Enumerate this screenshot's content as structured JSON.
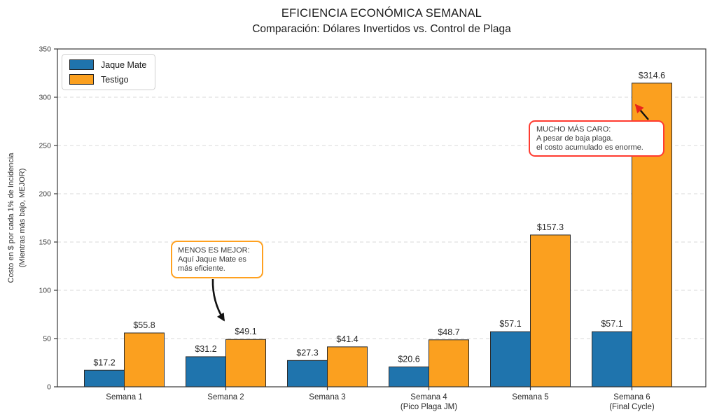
{
  "chart_data": {
    "type": "bar",
    "title": "EFICIENCIA ECONÓMICA SEMANAL",
    "subtitle": "Comparación: Dólares Invertidos vs. Control de Plaga",
    "ylabel_lines": [
      "Costo en $ por cada 1% de Incidencia",
      "(Mientras más bajo, MEJOR)"
    ],
    "ylim": [
      0,
      350
    ],
    "yticks": [
      0,
      50,
      100,
      150,
      200,
      250,
      300,
      350
    ],
    "grid": "horizontal dashed",
    "legend_position": "upper left",
    "value_label_prefix": "$",
    "categories": [
      {
        "label": "Semana 1",
        "sublabel": ""
      },
      {
        "label": "Semana 2",
        "sublabel": ""
      },
      {
        "label": "Semana 3",
        "sublabel": ""
      },
      {
        "label": "Semana 4",
        "sublabel": "(Pico Plaga JM)"
      },
      {
        "label": "Semana 5",
        "sublabel": ""
      },
      {
        "label": "Semana 6",
        "sublabel": "(Final Cycle)"
      }
    ],
    "series": [
      {
        "name": "Jaque Mate",
        "color": "#1f74ad",
        "values": [
          17.2,
          31.2,
          27.3,
          20.6,
          57.1,
          57.1
        ]
      },
      {
        "name": "Testigo",
        "color": "#fba01f",
        "values": [
          55.8,
          49.1,
          41.4,
          48.7,
          157.3,
          314.6
        ]
      }
    ],
    "annotations": [
      {
        "lines": [
          "MENOS ES MEJOR:",
          "Aquí Jaque Mate es",
          "más eficiente."
        ],
        "border_color": "#ffa120",
        "target": "top of Testigo bar, Semana 2"
      },
      {
        "lines": [
          "MUCHO MÁS CARO:",
          "A pesar de baja plaga.",
          "el costo acumulado es enorme."
        ],
        "border_color": "#ff3b30",
        "target": "top of Testigo bar, Semana 6"
      }
    ]
  },
  "colors": {
    "background": "#ffffff",
    "bar_edge": "#2b2b2b",
    "grid": "#d8d8d8",
    "frame": "#3a3a3a",
    "tick_text": "#3d3d3d",
    "label_text": "#2a2a2a",
    "title_text": "#1c1c1c",
    "arrow": "#111111",
    "arrowhead_red": "#e8251c"
  }
}
